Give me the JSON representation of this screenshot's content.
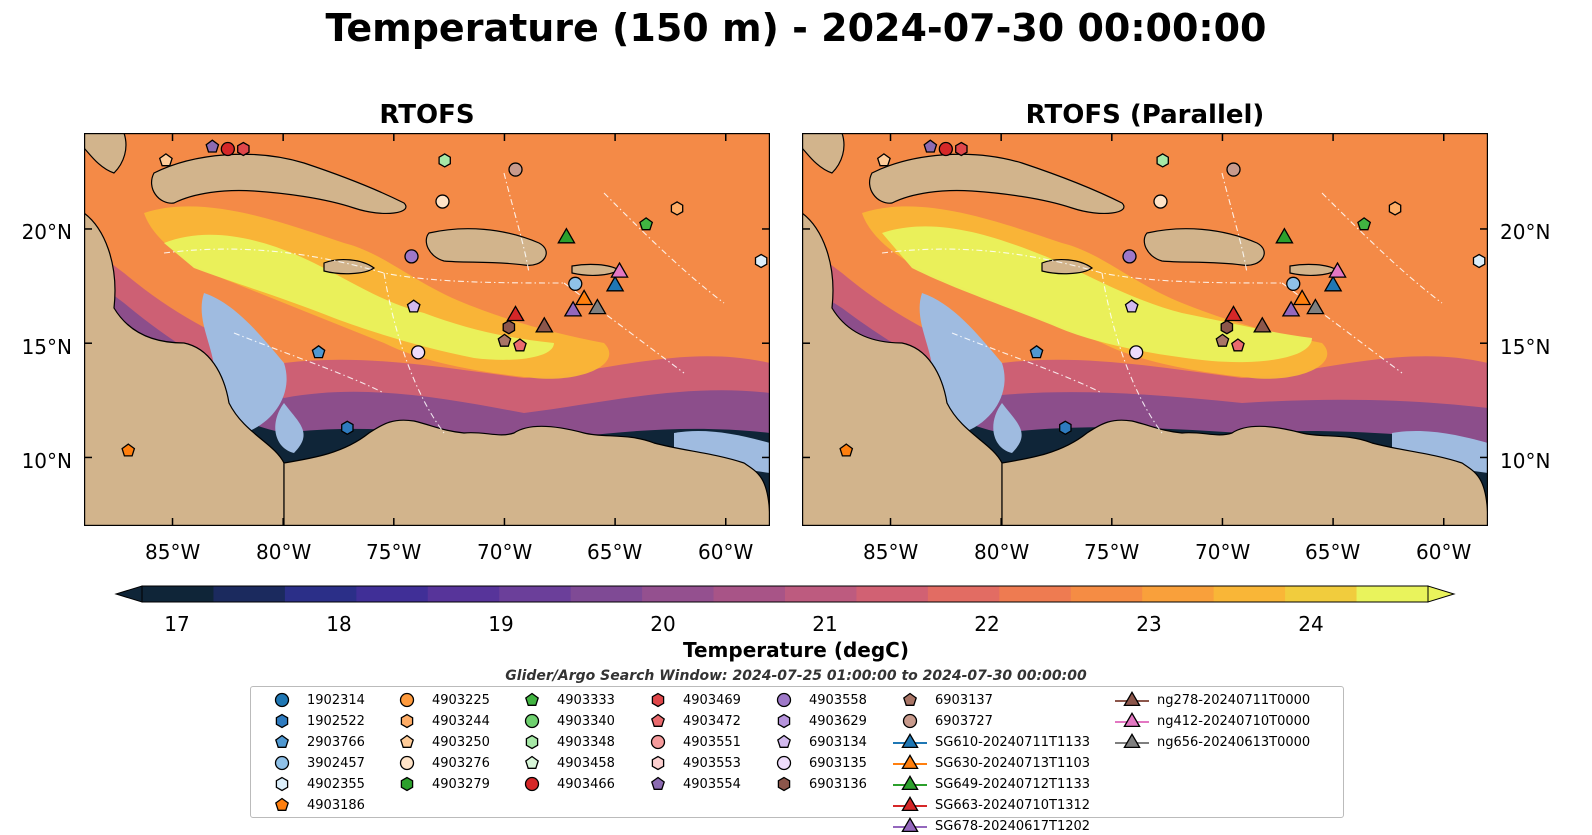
{
  "figure": {
    "title": "Temperature (150 m) - 2024-07-30 00:00:00",
    "search_window": "Glider/Argo Search Window: 2024-07-25 01:00:00 to 2024-07-30 00:00:00"
  },
  "panels": [
    {
      "title": "RTOFS"
    },
    {
      "title": "RTOFS (Parallel)"
    }
  ],
  "axes": {
    "lon_ticks": [
      {
        "value": -85,
        "label": "85°W"
      },
      {
        "value": -80,
        "label": "80°W"
      },
      {
        "value": -75,
        "label": "75°W"
      },
      {
        "value": -70,
        "label": "70°W"
      },
      {
        "value": -65,
        "label": "65°W"
      },
      {
        "value": -60,
        "label": "60°W"
      }
    ],
    "lat_ticks": [
      {
        "value": 20,
        "label": "20°N"
      },
      {
        "value": 15,
        "label": "15°N"
      },
      {
        "value": 10,
        "label": "10°N"
      }
    ],
    "lon_range": [
      -89,
      -58
    ],
    "lat_range": [
      7,
      24.2
    ]
  },
  "colorbar": {
    "label": "Temperature (degC)",
    "min": 16.5,
    "max": 24.5,
    "ticks": [
      {
        "value": 17,
        "label": "17"
      },
      {
        "value": 18,
        "label": "18"
      },
      {
        "value": 19,
        "label": "19"
      },
      {
        "value": 20,
        "label": "20"
      },
      {
        "value": 21,
        "label": "21"
      },
      {
        "value": 22,
        "label": "22"
      },
      {
        "value": 23,
        "label": "23"
      },
      {
        "value": 24,
        "label": "24"
      }
    ],
    "colors": [
      "#0f2538",
      "#1b2a5e",
      "#2b2f88",
      "#402f97",
      "#57349a",
      "#6b3f9a",
      "#7f4a95",
      "#94508f",
      "#a85487",
      "#bd5b7f",
      "#d16173",
      "#e26c63",
      "#ee7b51",
      "#f58c44",
      "#f9a03b",
      "#f9b637",
      "#f1cc3d",
      "#e9f35c"
    ]
  },
  "legend": {
    "items": [
      {
        "label": "1902314",
        "marker": "circle",
        "color": "#1f77b4"
      },
      {
        "label": "1902522",
        "marker": "hexagon",
        "color": "#2e7bbf"
      },
      {
        "label": "2903766",
        "marker": "pentagon",
        "color": "#4f98d1"
      },
      {
        "label": "3902457",
        "marker": "circle",
        "color": "#8fc1e8"
      },
      {
        "label": "4902355",
        "marker": "hexagon",
        "color": "#dbeefa"
      },
      {
        "label": "4903186",
        "marker": "pentagon",
        "color": "#ff7f0e"
      },
      {
        "label": "4903225",
        "marker": "circle",
        "color": "#ff9a3c"
      },
      {
        "label": "4903244",
        "marker": "hexagon",
        "color": "#ffad66"
      },
      {
        "label": "4903250",
        "marker": "pentagon",
        "color": "#ffcc99"
      },
      {
        "label": "4903276",
        "marker": "circle",
        "color": "#ffe3c7"
      },
      {
        "label": "4903279",
        "marker": "hexagon",
        "color": "#2ca02c"
      },
      {
        "label": "4903333",
        "marker": "pentagon",
        "color": "#41b441"
      },
      {
        "label": "4903340",
        "marker": "circle",
        "color": "#6fd16f"
      },
      {
        "label": "4903348",
        "marker": "hexagon",
        "color": "#a6e8a6"
      },
      {
        "label": "4903458",
        "marker": "pentagon",
        "color": "#d9f7d9"
      },
      {
        "label": "4903466",
        "marker": "circle",
        "color": "#d62728"
      },
      {
        "label": "4903469",
        "marker": "hexagon",
        "color": "#e0474a"
      },
      {
        "label": "4903472",
        "marker": "pentagon",
        "color": "#ea6b6e"
      },
      {
        "label": "4903551",
        "marker": "circle",
        "color": "#f59b9c"
      },
      {
        "label": "4903553",
        "marker": "hexagon",
        "color": "#fcd0d0"
      },
      {
        "label": "4903554",
        "marker": "pentagon",
        "color": "#8c6bb1"
      },
      {
        "label": "4903558",
        "marker": "circle",
        "color": "#9e78c8"
      },
      {
        "label": "4903629",
        "marker": "hexagon",
        "color": "#b693dc"
      },
      {
        "label": "6903134",
        "marker": "pentagon",
        "color": "#d2b9ee"
      },
      {
        "label": "6903135",
        "marker": "circle",
        "color": "#eedcfb"
      },
      {
        "label": "6903136",
        "marker": "hexagon",
        "color": "#8c564b"
      },
      {
        "label": "6903137",
        "marker": "pentagon",
        "color": "#a97566"
      },
      {
        "label": "6903727",
        "marker": "circle",
        "color": "#c89a8c"
      },
      {
        "label": "SG610-20240711T1133",
        "marker": "triangle",
        "color": "#1f77b4"
      },
      {
        "label": "SG630-20240713T1103",
        "marker": "triangle",
        "color": "#ff7f0e"
      },
      {
        "label": "SG649-20240712T1133",
        "marker": "triangle",
        "color": "#2ca02c"
      },
      {
        "label": "SG663-20240710T1312",
        "marker": "triangle",
        "color": "#d62728"
      },
      {
        "label": "SG678-20240617T1202",
        "marker": "triangle",
        "color": "#9467bd"
      },
      {
        "label": "ng278-20240711T0000",
        "marker": "triangle",
        "color": "#8c564b"
      },
      {
        "label": "ng412-20240710T0000",
        "marker": "triangle",
        "color": "#e377c2"
      },
      {
        "label": "ng656-20240613T0000",
        "marker": "triangle",
        "color": "#7f7f7f"
      }
    ]
  },
  "platform_positions": [
    {
      "id": "4903186",
      "lon": -87.0,
      "lat": 10.3
    },
    {
      "id": "4903276",
      "lon": -72.8,
      "lat": 21.2
    },
    {
      "id": "6903727",
      "lon": -69.5,
      "lat": 22.6
    },
    {
      "id": "4903244",
      "lon": -62.2,
      "lat": 20.9
    },
    {
      "id": "4903333",
      "lon": -63.6,
      "lat": 20.2
    },
    {
      "id": "4903348",
      "lon": -72.7,
      "lat": 23.0
    },
    {
      "id": "4903250",
      "lon": -85.3,
      "lat": 23.0
    },
    {
      "id": "4903554",
      "lon": -83.2,
      "lat": 23.6
    },
    {
      "id": "4903466",
      "lon": -82.5,
      "lat": 23.5
    },
    {
      "id": "4903469",
      "lon": -81.8,
      "lat": 23.5
    },
    {
      "id": "4903558",
      "lon": -74.2,
      "lat": 18.8
    },
    {
      "id": "6903134",
      "lon": -74.1,
      "lat": 16.6
    },
    {
      "id": "6903135",
      "lon": -73.9,
      "lat": 14.6
    },
    {
      "id": "2903766",
      "lon": -78.4,
      "lat": 14.6
    },
    {
      "id": "1902522",
      "lon": -77.1,
      "lat": 11.3
    },
    {
      "id": "4902355",
      "lon": -58.4,
      "lat": 18.6
    },
    {
      "id": "6903136",
      "lon": -69.8,
      "lat": 15.7
    },
    {
      "id": "6903137",
      "lon": -70.0,
      "lat": 15.1
    },
    {
      "id": "4903472",
      "lon": -69.3,
      "lat": 14.9
    },
    {
      "id": "3902457",
      "lon": -66.8,
      "lat": 17.6
    },
    {
      "id": "SG663-20240710T1312",
      "lon": -69.5,
      "lat": 16.2
    },
    {
      "id": "ng278-20240711T0000",
      "lon": -68.2,
      "lat": 15.7
    },
    {
      "id": "SG649-20240712T1133",
      "lon": -67.2,
      "lat": 19.6
    },
    {
      "id": "SG630-20240713T1103",
      "lon": -66.4,
      "lat": 16.9
    },
    {
      "id": "SG678-20240617T1202",
      "lon": -66.9,
      "lat": 16.4
    },
    {
      "id": "ng656-20240613T0000",
      "lon": -65.8,
      "lat": 16.5
    },
    {
      "id": "SG610-20240711T1133",
      "lon": -65.0,
      "lat": 17.5
    },
    {
      "id": "ng412-20240710T0000",
      "lon": -64.8,
      "lat": 18.1
    }
  ]
}
